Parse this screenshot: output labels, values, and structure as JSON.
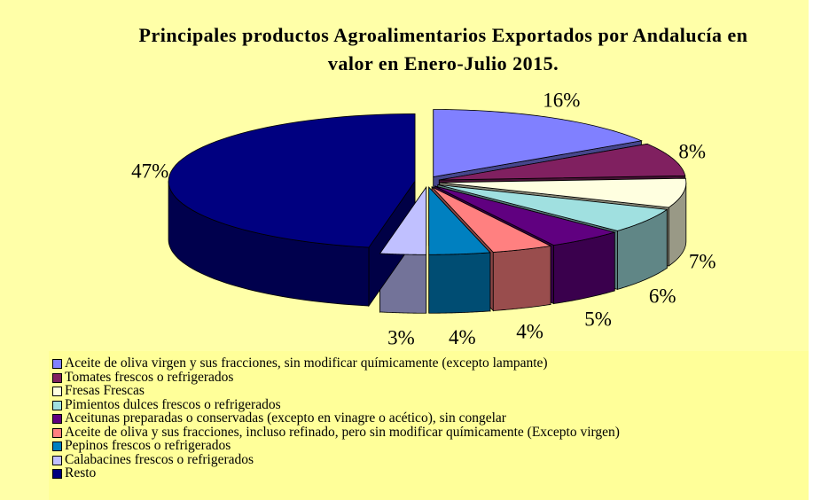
{
  "chart_data": {
    "type": "pie3d",
    "title": "Principales productos Agroalimentarios Exportados por Andalucía en valor en Enero-Julio 2015.",
    "categories": [
      "Aceite de oliva virgen y sus fracciones, sin modificar químicamente (excepto lampante)",
      "Tomates frescos o refrigerados",
      "Fresas Frescas",
      "Pimientos dulces frescos o refrigerados",
      "Aceitunas preparadas o conservadas (excepto en vinagre o acético), sin congelar",
      "Aceite de oliva y sus fracciones, incluso refinado, pero sin modificar químicamente (Excepto virgen)",
      "Pepinos frescos o refrigerados",
      "Calabacines frescos o refrigerados",
      "Resto"
    ],
    "values": [
      16,
      8,
      7,
      6,
      5,
      4,
      4,
      3,
      47
    ],
    "value_labels": [
      "16%",
      "8%",
      "7%",
      "6%",
      "5%",
      "4%",
      "4%",
      "3%",
      "47%"
    ],
    "colors": [
      "#8080ff",
      "#802060",
      "#ffffe0",
      "#a0e0e0",
      "#600080",
      "#ff8080",
      "#0080c0",
      "#c0c0ff",
      "#000080"
    ],
    "legend": "bottom"
  }
}
